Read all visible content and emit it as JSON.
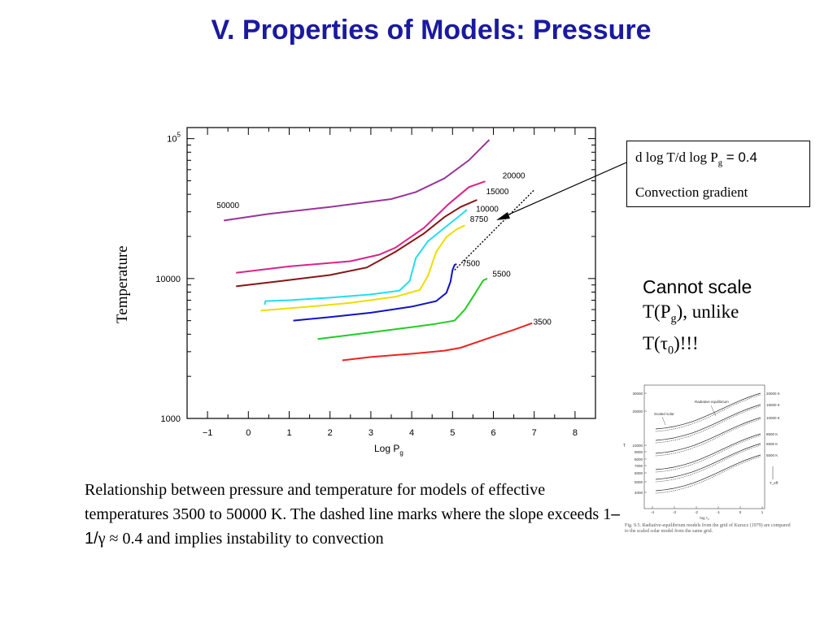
{
  "page": {
    "title": "V. Properties of Models: Pressure",
    "callout": {
      "line1_prefix": "d log T/d log P",
      "line1_sub": "g",
      "line1_suffix": " = 0.4",
      "line2": "Convection gradient"
    },
    "note": {
      "line1": "Cannot scale",
      "line2_a": "T(P",
      "line2_sub": "g",
      "line2_b": "), unlike",
      "line3_a": "T(τ",
      "line3_sub": "0",
      "line3_b": ")!!!"
    },
    "caption": {
      "part1": "Relationship between pressure and temperature for models of effective temperatures 3500 to 50000 K. The dashed line marks where the slope exceeds 1",
      "part2": "–1/",
      "part3": "γ ≈ 0.4 and implies instability to convection"
    },
    "thumbnail": {
      "yticks": [
        "30000",
        "20000",
        "10000",
        "9000",
        "8000",
        "7000",
        "6000",
        "5000",
        "4000"
      ],
      "ylabel": "T",
      "xticks": [
        "-4",
        "-3",
        "-2",
        "-1",
        "0",
        "1"
      ],
      "xlabel": "log τ₀",
      "curve_labels": [
        "20000 K",
        "15000 K",
        "10000 K",
        "8500 K",
        "6500 K",
        "5500 K"
      ],
      "annotations": [
        "Radiative equilibrium",
        "Scaled solar"
      ],
      "teff_label": "T_eff",
      "caption": "Fig. 9.5.  Radiative-equilibrium models from the grid of Kurucz (1979) are compared to the scaled solar model from the same grid."
    }
  },
  "chart_data": {
    "type": "line",
    "xlabel": "Log P",
    "xlabel_sub": "g",
    "ylabel": "Temperature",
    "xlim": [
      -1.5,
      8.5
    ],
    "ylim": [
      1000,
      120000
    ],
    "yscale": "log",
    "xticks": [
      -1,
      0,
      1,
      2,
      3,
      4,
      5,
      6,
      7,
      8
    ],
    "ytick_labels": [
      {
        "value": 1000,
        "label": "1000"
      },
      {
        "value": 10000,
        "label": "10000"
      },
      {
        "value": 100000,
        "label": "10",
        "sup": "5"
      }
    ],
    "series": [
      {
        "name": "50000",
        "color": "#993399",
        "points": [
          [
            -0.6,
            26000
          ],
          [
            0.5,
            29000
          ],
          [
            2,
            32500
          ],
          [
            3.5,
            37000
          ],
          [
            4.1,
            41500
          ],
          [
            4.8,
            52000
          ],
          [
            5.4,
            70000
          ],
          [
            5.9,
            98000
          ]
        ]
      },
      {
        "name": "20000",
        "color": "#dd2288",
        "points": [
          [
            -0.3,
            11000
          ],
          [
            1,
            12200
          ],
          [
            2.5,
            13300
          ],
          [
            3.2,
            14800
          ],
          [
            3.6,
            16600
          ],
          [
            4.3,
            23000
          ],
          [
            4.9,
            34000
          ],
          [
            5.4,
            45000
          ],
          [
            5.8,
            49500
          ]
        ]
      },
      {
        "name": "15000",
        "color": "#881515",
        "points": [
          [
            -0.3,
            8800
          ],
          [
            0.8,
            9600
          ],
          [
            2,
            10600
          ],
          [
            2.9,
            12000
          ],
          [
            3.6,
            15500
          ],
          [
            4.3,
            21000
          ],
          [
            4.8,
            27500
          ],
          [
            5.2,
            32500
          ],
          [
            5.6,
            36500
          ]
        ]
      },
      {
        "name": "10000",
        "color": "#22ddee",
        "points": [
          [
            0.4,
            6500
          ],
          [
            0.42,
            6900
          ],
          [
            1,
            7000
          ],
          [
            2,
            7300
          ],
          [
            3,
            7700
          ],
          [
            3.7,
            8200
          ],
          [
            3.95,
            9600
          ],
          [
            4.1,
            14000
          ],
          [
            4.4,
            18500
          ],
          [
            4.8,
            23000
          ],
          [
            5.2,
            28500
          ],
          [
            5.35,
            31000
          ]
        ]
      },
      {
        "name": "8750",
        "color": "#eedd00",
        "points": [
          [
            0.3,
            5900
          ],
          [
            1.5,
            6300
          ],
          [
            2.5,
            6700
          ],
          [
            3.6,
            7400
          ],
          [
            4.2,
            8300
          ],
          [
            4.4,
            10500
          ],
          [
            4.6,
            15500
          ],
          [
            4.85,
            19800
          ],
          [
            5.1,
            22500
          ],
          [
            5.3,
            24000
          ]
        ]
      },
      {
        "name": "7500",
        "color": "#1111cc",
        "points": [
          [
            1.1,
            5000
          ],
          [
            2,
            5300
          ],
          [
            3,
            5700
          ],
          [
            4,
            6300
          ],
          [
            4.6,
            6900
          ],
          [
            4.85,
            7900
          ],
          [
            4.95,
            9500
          ],
          [
            5,
            11500
          ],
          [
            5.05,
            12500
          ],
          [
            5.1,
            12700
          ]
        ]
      },
      {
        "name": "5500",
        "color": "#22cc22",
        "points": [
          [
            1.7,
            3700
          ],
          [
            2.5,
            3950
          ],
          [
            3.5,
            4300
          ],
          [
            4.5,
            4700
          ],
          [
            5.05,
            5000
          ],
          [
            5.3,
            6000
          ],
          [
            5.55,
            7800
          ],
          [
            5.75,
            9700
          ],
          [
            5.85,
            10000
          ]
        ]
      },
      {
        "name": "3500",
        "color": "#ee2222",
        "points": [
          [
            2.3,
            2600
          ],
          [
            3,
            2750
          ],
          [
            4,
            2900
          ],
          [
            4.8,
            3050
          ],
          [
            5.2,
            3200
          ],
          [
            6,
            3850
          ],
          [
            6.5,
            4300
          ],
          [
            6.95,
            4800
          ]
        ]
      }
    ],
    "dashed_line": {
      "label": "d log T/d log P_g = 0.4",
      "points": [
        [
          5.05,
          11500
        ],
        [
          7,
          43000
        ]
      ]
    },
    "curve_labels": [
      {
        "text": "50000",
        "x": -0.5,
        "y": 32000
      },
      {
        "text": "20000",
        "x": 6.5,
        "y": 52000
      },
      {
        "text": "15000",
        "x": 6.1,
        "y": 40000
      },
      {
        "text": "10000",
        "x": 5.85,
        "y": 30000
      },
      {
        "text": "8750",
        "x": 5.65,
        "y": 25500
      },
      {
        "text": "7500",
        "x": 5.45,
        "y": 12300
      },
      {
        "text": "5500",
        "x": 6.2,
        "y": 10300
      },
      {
        "text": "3500",
        "x": 7.2,
        "y": 4700
      }
    ]
  }
}
